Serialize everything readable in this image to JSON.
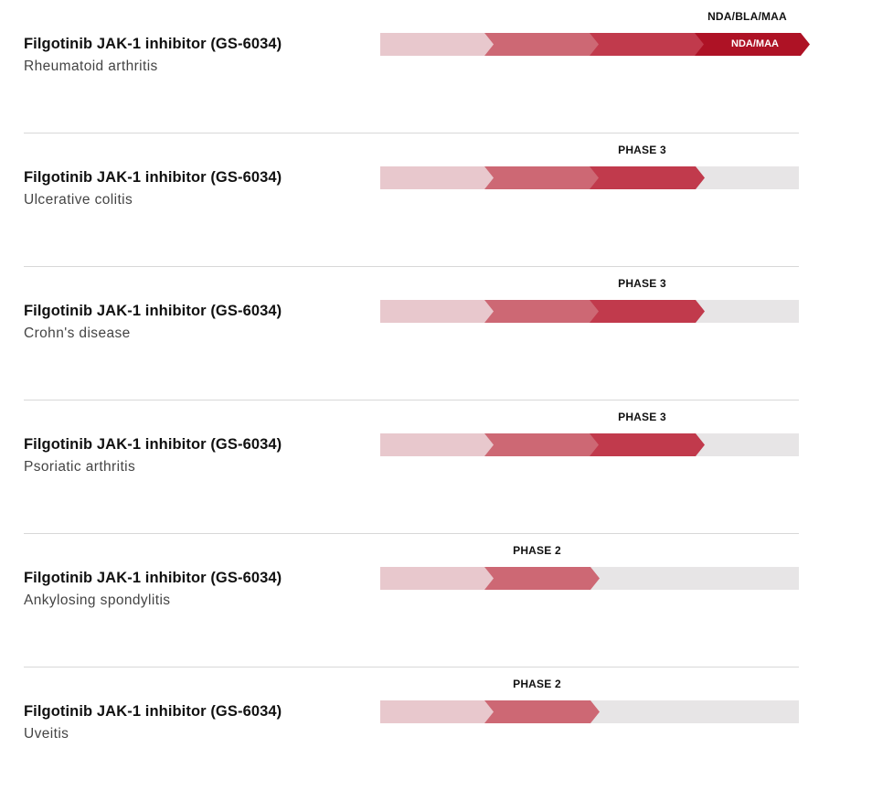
{
  "rows": [
    {
      "drug": "Filgotinib JAK-1 inhibitor (GS-6034)",
      "indication": "Rheumatoid arthritis",
      "stage_label": "NDA/BLA/MAA",
      "segment_label": "NDA/MAA"
    },
    {
      "drug": "Filgotinib JAK-1 inhibitor (GS-6034)",
      "indication": "Ulcerative colitis",
      "stage_label": "PHASE 3"
    },
    {
      "drug": "Filgotinib JAK-1 inhibitor (GS-6034)",
      "indication": "Crohn's disease",
      "stage_label": "PHASE 3"
    },
    {
      "drug": "Filgotinib JAK-1 inhibitor (GS-6034)",
      "indication": "Psoriatic arthritis",
      "stage_label": "PHASE 3"
    },
    {
      "drug": "Filgotinib JAK-1 inhibitor (GS-6034)",
      "indication": "Ankylosing spondylitis",
      "stage_label": "PHASE 2"
    },
    {
      "drug": "Filgotinib JAK-1 inhibitor (GS-6034)",
      "indication": "Uveitis",
      "stage_label": "PHASE 2"
    }
  ],
  "colors": {
    "stage_1": "#e8c8cd",
    "stage_2": "#cd6874",
    "stage_3": "#c13a4c",
    "stage_4": "#ae1225",
    "track": "#e7e5e6"
  }
}
